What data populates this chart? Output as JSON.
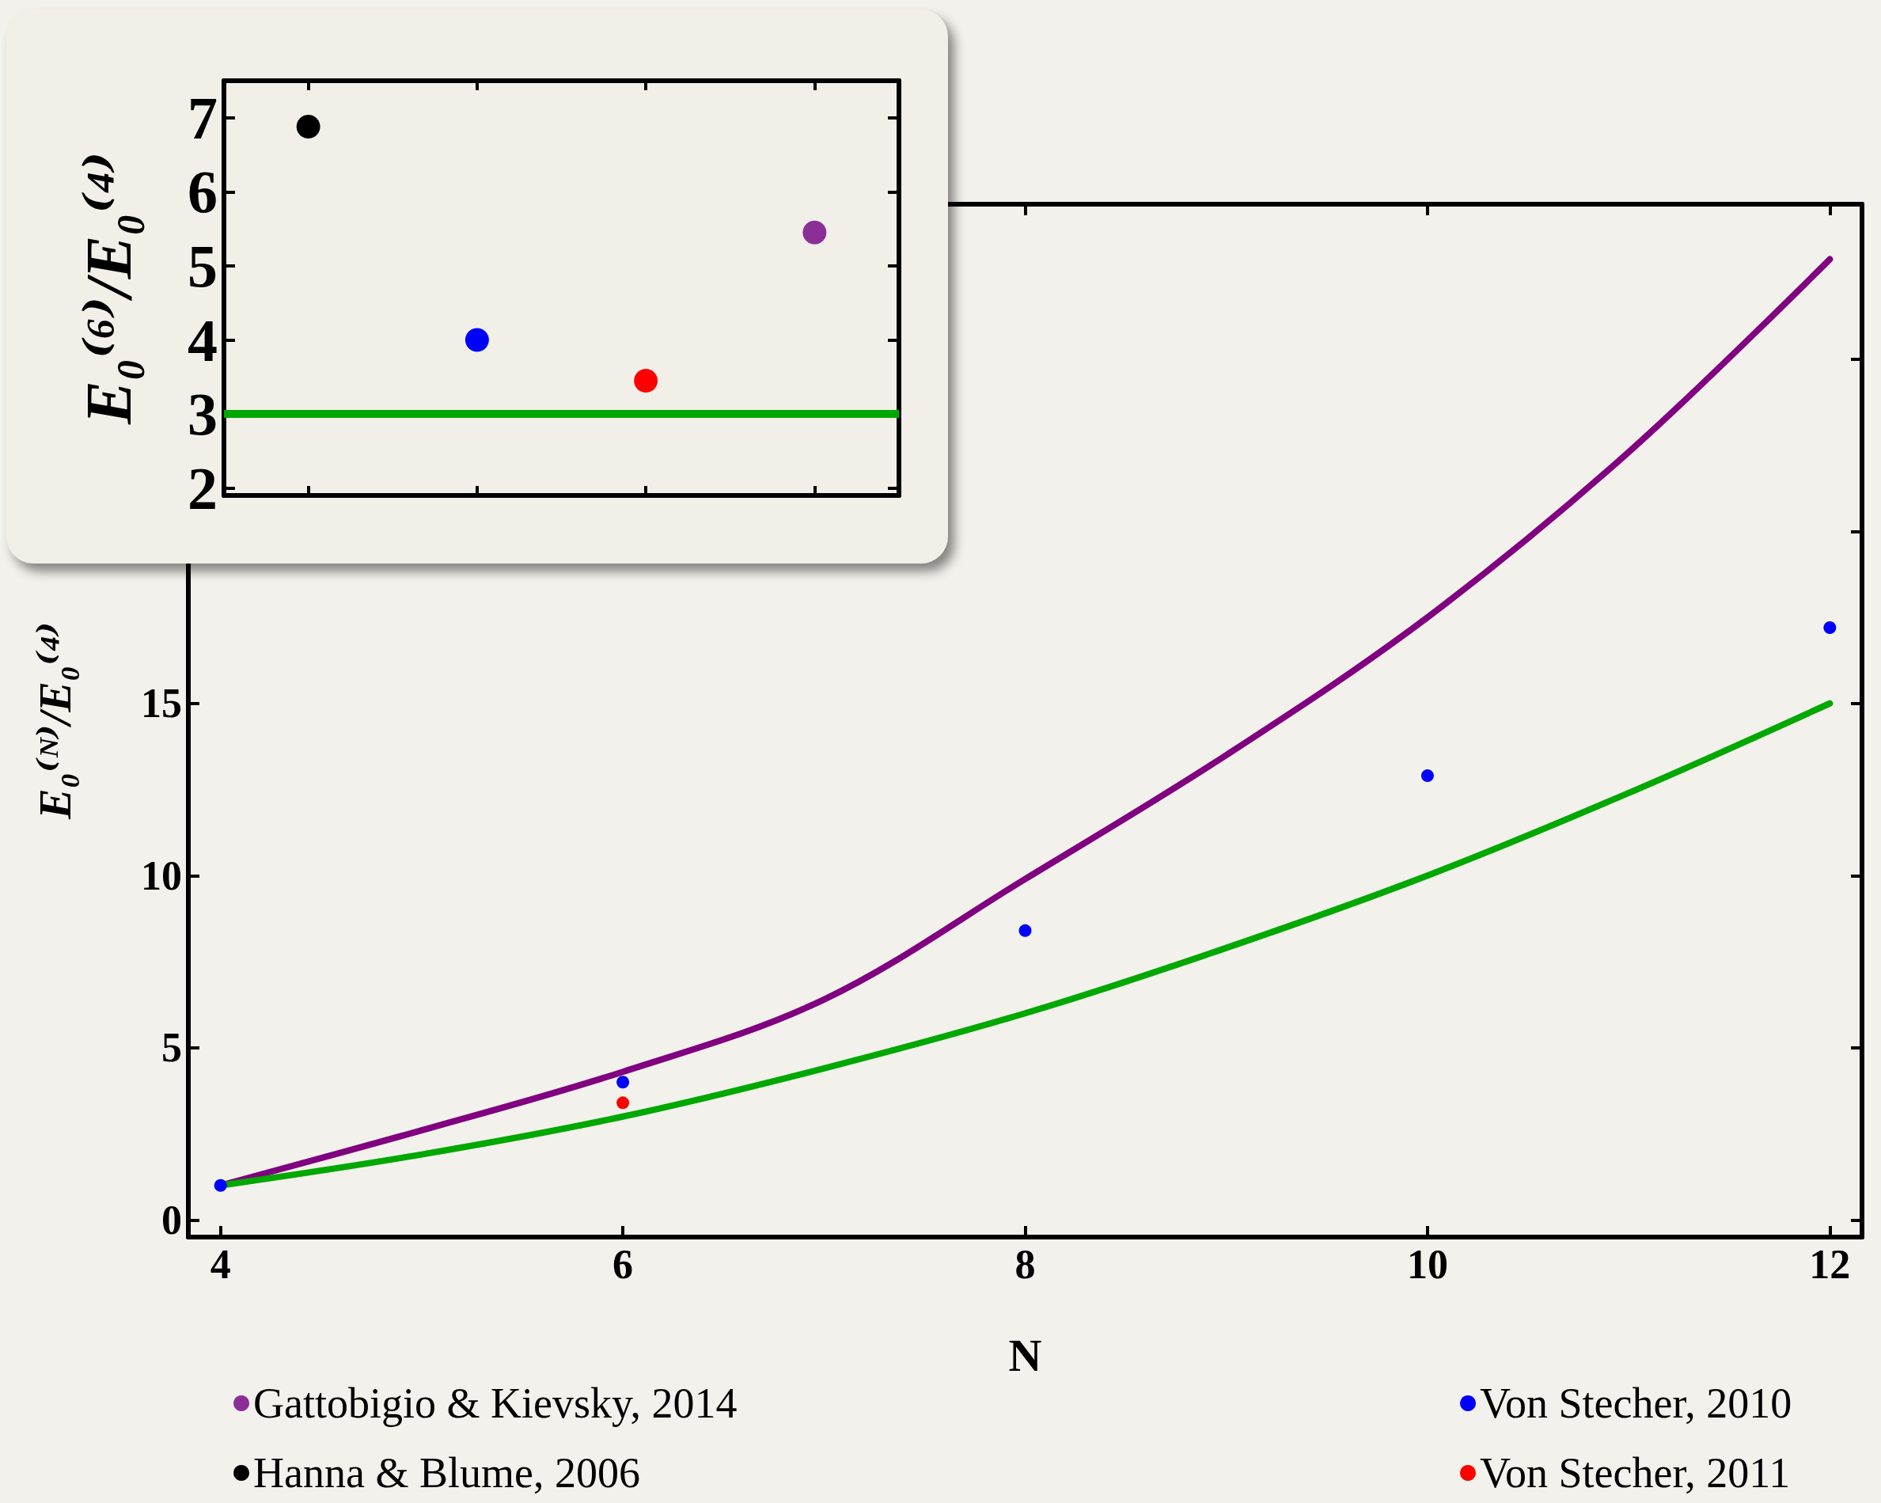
{
  "chart_data": [
    {
      "type": "line",
      "xlabel": "N",
      "ylabel": "E₀⁽ᴺ⁾/E₀⁽⁴⁾",
      "xlim": [
        3.84,
        12.16
      ],
      "xticks": [
        4,
        6,
        8,
        10,
        12
      ],
      "ylim": [
        -0.5,
        29.5
      ],
      "yticks": [
        0,
        5,
        10,
        15,
        {
          "value": 20,
          "label": null
        },
        {
          "value": 25,
          "label": null
        }
      ],
      "grid": false,
      "legend": false,
      "series": [
        {
          "marker": "none",
          "color": "#800080",
          "x": [
            4,
            5,
            6,
            7,
            8,
            9,
            10,
            11,
            12
          ],
          "values": [
            1,
            2.6,
            4.3,
            6.4,
            9.9,
            13.5,
            17.5,
            22.3,
            27.9
          ]
        },
        {
          "marker": "none",
          "color": "#00a800",
          "x": [
            4,
            5,
            6,
            7,
            8,
            9,
            10,
            11,
            12
          ],
          "values": [
            1,
            1.9,
            3,
            4.4,
            6,
            7.9,
            10,
            12.4,
            15
          ]
        },
        {
          "type": "scatter",
          "marker": "circle",
          "color": "#0000ff",
          "x": [
            4,
            6,
            8,
            10,
            12
          ],
          "values": [
            1,
            4.0,
            8.4,
            12.9,
            17.2
          ]
        },
        {
          "type": "scatter",
          "marker": "circle",
          "color": "#ff0000",
          "x": [
            6
          ],
          "values": [
            3.4
          ]
        }
      ]
    },
    {
      "type": "scatter",
      "ylabel": "E₀⁽⁶⁾/E₀⁽⁴⁾",
      "categories": [
        null,
        null,
        null,
        null
      ],
      "ylim": [
        1.9,
        7.5
      ],
      "yticks": [
        2,
        3,
        4,
        5,
        6,
        7
      ],
      "tick_labels": "y",
      "grid": false,
      "legend": "bottom",
      "marker": "circle",
      "ref_lines": [
        {
          "axis": "y",
          "value": 3,
          "color": "#00a800"
        }
      ],
      "series": [
        {
          "name": "Gattobigio & Kievsky, 2014",
          "color": "#8b2f96",
          "values": [
            null,
            null,
            null,
            5.45
          ]
        },
        {
          "name": "Hanna & Blume, 2006",
          "color": "#000000",
          "values": [
            6.88,
            null,
            null,
            null
          ]
        },
        {
          "name": "Von Stecher, 2010",
          "color": "#0000ff",
          "values": [
            null,
            4.0,
            null,
            null
          ],
          "errors": [
            null,
            0.05,
            null,
            null
          ]
        },
        {
          "name": "Von Stecher, 2011",
          "color": "#ff0000",
          "values": [
            null,
            null,
            3.45,
            null
          ],
          "errors": [
            null,
            null,
            0.05,
            null
          ]
        }
      ]
    }
  ]
}
